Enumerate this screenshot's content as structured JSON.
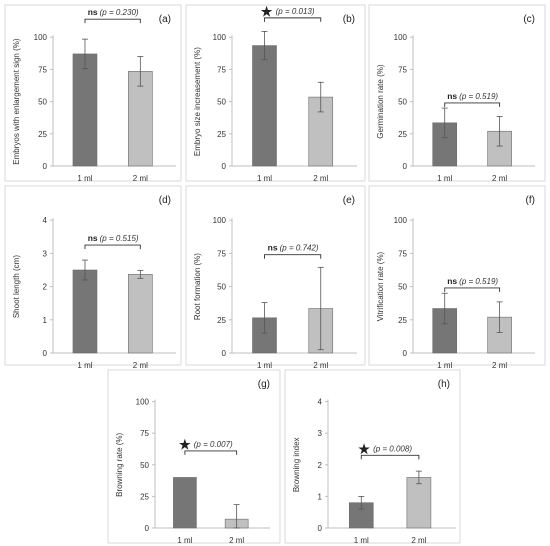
{
  "styles": {
    "bar_dark": "#767676",
    "bar_light": "#c0c0c0",
    "axis": "#bfbfbf",
    "text": "#333333"
  },
  "chart_data": [
    {
      "id": "a",
      "panel_label": "(a)",
      "type": "bar",
      "categories": [
        "1 ml",
        "2 ml"
      ],
      "values": [
        87,
        73.5
      ],
      "errors": [
        11.5,
        11.5
      ],
      "ylabel": "Embryos with enlargement sign (%)",
      "ylim": [
        0,
        125
      ],
      "yticks": [
        0,
        25,
        50,
        75,
        100
      ],
      "significance": {
        "mark": "ns",
        "p_text": "(p = 0.230)",
        "y": 114
      }
    },
    {
      "id": "b",
      "panel_label": "(b)",
      "type": "bar",
      "categories": [
        "1 ml",
        "2 ml"
      ],
      "values": [
        93.5,
        53.5
      ],
      "errors": [
        11,
        11.5
      ],
      "ylabel": "Embryo size increasement (%)",
      "ylim": [
        0,
        125
      ],
      "yticks": [
        0,
        25,
        50,
        75,
        100
      ],
      "significance": {
        "mark": "★",
        "p_text": "(p = 0.013)",
        "y": 115
      }
    },
    {
      "id": "c",
      "panel_label": "(c)",
      "type": "bar",
      "categories": [
        "1 ml",
        "2 ml"
      ],
      "values": [
        33.5,
        27
      ],
      "errors": [
        11.5,
        11.5
      ],
      "ylabel": "Germination rate (%)",
      "ylim": [
        0,
        125
      ],
      "yticks": [
        0,
        25,
        50,
        75,
        100
      ],
      "significance": {
        "mark": "ns",
        "p_text": "(p = 0.519)",
        "y": 49
      }
    },
    {
      "id": "d",
      "panel_label": "(d)",
      "type": "bar",
      "categories": [
        "1 ml",
        "2 ml"
      ],
      "values": [
        2.5,
        2.37
      ],
      "errors": [
        0.3,
        0.12
      ],
      "ylabel": "Shoot length (cm)",
      "ylim": [
        0,
        5
      ],
      "yticks": [
        0,
        1,
        2,
        3,
        4
      ],
      "significance": {
        "mark": "ns",
        "p_text": "(p = 0.515)",
        "y": 3.25
      }
    },
    {
      "id": "e",
      "panel_label": "(e)",
      "type": "bar",
      "categories": [
        "1 ml",
        "2 ml"
      ],
      "values": [
        26.5,
        33.5
      ],
      "errors": [
        11.5,
        31
      ],
      "ylabel": "Root formation (%)",
      "ylim": [
        0,
        125
      ],
      "yticks": [
        0,
        25,
        50,
        75,
        100
      ],
      "significance": {
        "mark": "ns",
        "p_text": "(p = 0.742)",
        "y": 74
      }
    },
    {
      "id": "f",
      "panel_label": "(f)",
      "type": "bar",
      "categories": [
        "1 ml",
        "2 ml"
      ],
      "values": [
        33.5,
        27
      ],
      "errors": [
        11.5,
        11.5
      ],
      "ylabel": "Vitrification rate (%)",
      "ylim": [
        0,
        125
      ],
      "yticks": [
        0,
        25,
        50,
        75,
        100
      ],
      "significance": {
        "mark": "ns",
        "p_text": "(p = 0.519)",
        "y": 49
      }
    },
    {
      "id": "g",
      "panel_label": "(g)",
      "type": "bar",
      "categories": [
        "1 ml",
        "2 ml"
      ],
      "values": [
        40,
        7
      ],
      "errors": [
        0,
        11.5
      ],
      "ylabel": "Browning rate (%)",
      "ylim": [
        0,
        125
      ],
      "yticks": [
        0,
        25,
        50,
        75,
        100
      ],
      "significance": {
        "mark": "★",
        "p_text": "(p = 0.007)",
        "y": 61
      }
    },
    {
      "id": "h",
      "panel_label": "(h)",
      "type": "bar",
      "categories": [
        "1 ml",
        "2 ml"
      ],
      "values": [
        0.8,
        1.6
      ],
      "errors": [
        0.2,
        0.2
      ],
      "ylabel": "Browning index",
      "ylim": [
        0,
        5
      ],
      "yticks": [
        0,
        1,
        2,
        3,
        4
      ],
      "significance": {
        "mark": "★",
        "p_text": "(p = 0.008)",
        "y": 2.3
      }
    }
  ]
}
